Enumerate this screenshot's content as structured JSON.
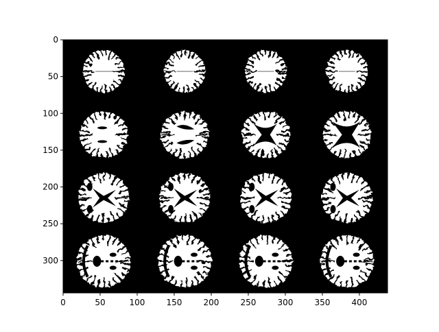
{
  "figure": {
    "background": "#ffffff",
    "axes_frame_color": "#000000",
    "image_background": "#000000",
    "tissue_color": "#ffffff",
    "ventricle_color": "#000000"
  },
  "axes": {
    "x_ticks": [
      "0",
      "50",
      "100",
      "150",
      "200",
      "250",
      "300",
      "350",
      "400"
    ],
    "y_ticks": [
      "0",
      "50",
      "100",
      "150",
      "200",
      "250",
      "300"
    ],
    "x_range": [
      0,
      438
    ],
    "y_range": [
      0,
      344
    ],
    "y_inverted": true
  },
  "montage": {
    "rows": 4,
    "cols": 4,
    "tiles": [
      {
        "row": 0,
        "col": 0,
        "ventricle": "none"
      },
      {
        "row": 0,
        "col": 1,
        "ventricle": "none"
      },
      {
        "row": 0,
        "col": 2,
        "ventricle": "none"
      },
      {
        "row": 0,
        "col": 3,
        "ventricle": "none"
      },
      {
        "row": 1,
        "col": 0,
        "ventricle": "small"
      },
      {
        "row": 1,
        "col": 1,
        "ventricle": "pair"
      },
      {
        "row": 1,
        "col": 2,
        "ventricle": "butterfly"
      },
      {
        "row": 1,
        "col": 3,
        "ventricle": "butterfly-large"
      },
      {
        "row": 2,
        "col": 0,
        "ventricle": "x-shape"
      },
      {
        "row": 2,
        "col": 1,
        "ventricle": "x-shape"
      },
      {
        "row": 2,
        "col": 2,
        "ventricle": "x-shape"
      },
      {
        "row": 2,
        "col": 3,
        "ventricle": "x-shape"
      },
      {
        "row": 3,
        "col": 0,
        "ventricle": "base"
      },
      {
        "row": 3,
        "col": 1,
        "ventricle": "base"
      },
      {
        "row": 3,
        "col": 2,
        "ventricle": "base"
      },
      {
        "row": 3,
        "col": 3,
        "ventricle": "base"
      }
    ]
  }
}
